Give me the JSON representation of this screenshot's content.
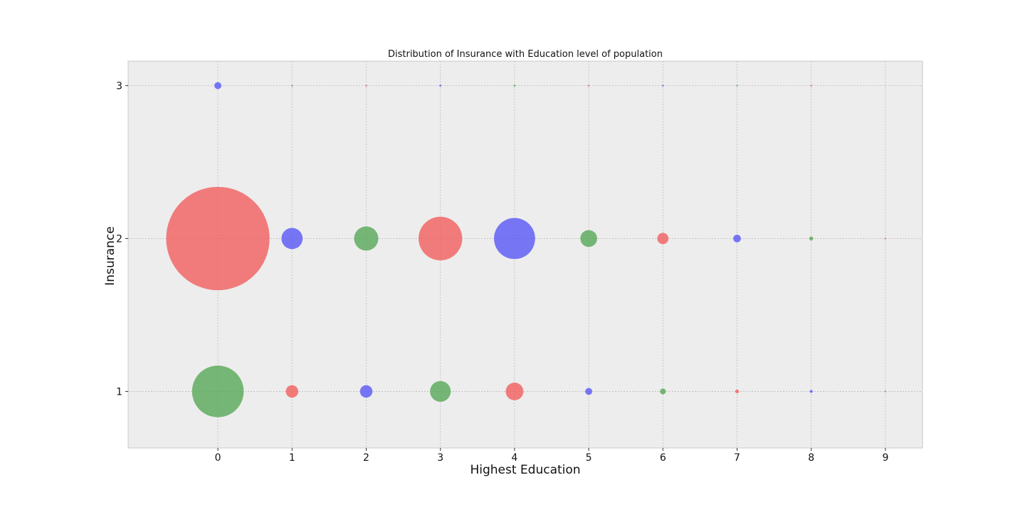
{
  "chart_data": {
    "type": "scatter",
    "title": "Distribution of Insurance with Education level of population",
    "xlabel": "Highest Education",
    "ylabel": "Insurance",
    "xticks": [
      0,
      1,
      2,
      3,
      4,
      5,
      6,
      7,
      8,
      9
    ],
    "yticks": [
      1,
      2,
      3
    ],
    "xlim": [
      -1.21,
      9.5
    ],
    "ylim": [
      0.63,
      3.16
    ],
    "grid": true,
    "colors": {
      "red": "#f26161",
      "green": "#5aa85a",
      "blue": "#5c5cf5",
      "background": "#ededed"
    },
    "points": [
      {
        "x": 0,
        "y": 3,
        "size": 50,
        "color": "blue"
      },
      {
        "x": 1,
        "y": 3,
        "size": 1,
        "color": "green"
      },
      {
        "x": 2,
        "y": 3,
        "size": 1,
        "color": "red"
      },
      {
        "x": 3,
        "y": 3,
        "size": 4,
        "color": "blue"
      },
      {
        "x": 4,
        "y": 3,
        "size": 4,
        "color": "green"
      },
      {
        "x": 5,
        "y": 3,
        "size": 1,
        "color": "red"
      },
      {
        "x": 6,
        "y": 3,
        "size": 1,
        "color": "blue"
      },
      {
        "x": 7,
        "y": 3,
        "size": 1,
        "color": "green"
      },
      {
        "x": 8,
        "y": 3,
        "size": 1,
        "color": "red"
      },
      {
        "x": 0,
        "y": 2,
        "size": 10950,
        "color": "red"
      },
      {
        "x": 1,
        "y": 2,
        "size": 460,
        "color": "blue"
      },
      {
        "x": 2,
        "y": 2,
        "size": 600,
        "color": "green"
      },
      {
        "x": 3,
        "y": 2,
        "size": 1950,
        "color": "red"
      },
      {
        "x": 4,
        "y": 2,
        "size": 1730,
        "color": "blue"
      },
      {
        "x": 5,
        "y": 2,
        "size": 290,
        "color": "green"
      },
      {
        "x": 6,
        "y": 2,
        "size": 130,
        "color": "red"
      },
      {
        "x": 7,
        "y": 2,
        "size": 60,
        "color": "blue"
      },
      {
        "x": 8,
        "y": 2,
        "size": 16,
        "color": "green"
      },
      {
        "x": 9,
        "y": 2,
        "size": 1,
        "color": "red"
      },
      {
        "x": 0,
        "y": 1,
        "size": 2730,
        "color": "green"
      },
      {
        "x": 1,
        "y": 1,
        "size": 160,
        "color": "red"
      },
      {
        "x": 2,
        "y": 1,
        "size": 160,
        "color": "blue"
      },
      {
        "x": 3,
        "y": 1,
        "size": 440,
        "color": "green"
      },
      {
        "x": 4,
        "y": 1,
        "size": 320,
        "color": "red"
      },
      {
        "x": 5,
        "y": 1,
        "size": 50,
        "color": "blue"
      },
      {
        "x": 6,
        "y": 1,
        "size": 35,
        "color": "green"
      },
      {
        "x": 7,
        "y": 1,
        "size": 14,
        "color": "red"
      },
      {
        "x": 8,
        "y": 1,
        "size": 9,
        "color": "blue"
      },
      {
        "x": 9,
        "y": 1,
        "size": 1,
        "color": "green"
      }
    ]
  }
}
